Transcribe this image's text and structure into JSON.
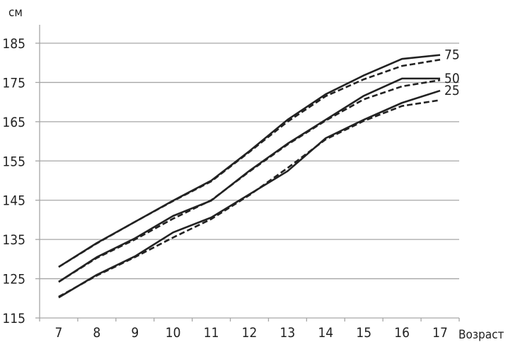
{
  "chart_data": {
    "type": "line",
    "title": "",
    "ylabel": "см",
    "xlabel": "Возраст",
    "ylim": [
      115,
      185
    ],
    "yticks": [
      "115",
      "125",
      "135",
      "145",
      "155",
      "165",
      "175",
      "185"
    ],
    "categories": [
      "7",
      "8",
      "9",
      "10",
      "11",
      "12",
      "13",
      "14",
      "15",
      "16",
      "17"
    ],
    "grid": true,
    "line_color": "#222222",
    "grid_color": "#a6a6a6",
    "series": [
      {
        "name": "75",
        "style": "solid",
        "values": [
          128.0,
          134.1,
          139.5,
          144.9,
          150.0,
          157.5,
          165.5,
          172.0,
          176.8,
          181.0,
          182.0
        ]
      },
      {
        "style": "dashed",
        "values": [
          128.0,
          134.0,
          139.5,
          144.8,
          149.8,
          157.3,
          165.0,
          171.5,
          175.8,
          179.2,
          180.8
        ]
      },
      {
        "name": "50",
        "style": "solid",
        "values": [
          124.2,
          130.5,
          135.3,
          141.0,
          144.9,
          152.5,
          159.4,
          165.5,
          171.6,
          176.0,
          176.0
        ]
      },
      {
        "style": "dashed",
        "values": [
          124.2,
          130.3,
          135.0,
          140.3,
          145.0,
          152.3,
          159.2,
          165.3,
          170.7,
          174.0,
          175.6
        ]
      },
      {
        "name": "25",
        "style": "solid",
        "values": [
          120.2,
          126.0,
          130.7,
          136.8,
          140.6,
          146.5,
          152.4,
          160.8,
          165.5,
          169.8,
          172.9
        ]
      },
      {
        "style": "dashed",
        "values": [
          120.4,
          125.8,
          130.5,
          135.5,
          140.2,
          146.3,
          153.2,
          160.5,
          165.2,
          169.0,
          170.5
        ]
      }
    ]
  }
}
